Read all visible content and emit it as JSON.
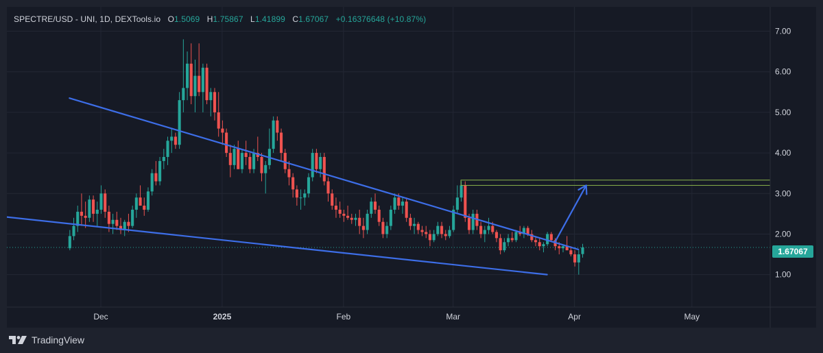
{
  "header": {
    "symbol": "SPECTRE/USD - UNI, 1D, DEXTools.io",
    "open_label": "O",
    "open": "1.5069",
    "high_label": "H",
    "high": "1.75867",
    "low_label": "L",
    "low": "1.41899",
    "close_label": "C",
    "close": "1.67067",
    "change": "+0.16376648 (+10.87%)"
  },
  "footer": {
    "brand": "TradingView"
  },
  "colors": {
    "up": "#26a69a",
    "down": "#ef5350",
    "trendline": "#3d6ee8",
    "level_box": "#8ab34a",
    "grid": "#232734",
    "text": "#d1d4dc"
  },
  "chart_data": {
    "type": "candlestick",
    "title": "SPECTRE/USD - UNI, 1D, DEXTools.io",
    "ylim": [
      0.2,
      7.6
    ],
    "y_ticks": [
      "7.00",
      "6.00",
      "5.00",
      "4.00",
      "3.00",
      "2.00",
      "1.00"
    ],
    "x_ticks": [
      "Dec",
      "2025",
      "Feb",
      "Mar",
      "Apr",
      "May"
    ],
    "x_tick_days": [
      8,
      39,
      70,
      98,
      129,
      159
    ],
    "x_range_days": [
      -16,
      179
    ],
    "last_price": "1.67067",
    "last_price_value": 1.67067,
    "ohlc": [
      [
        1.65,
        2.1,
        1.6,
        1.95
      ],
      [
        1.95,
        2.4,
        1.85,
        2.2
      ],
      [
        2.2,
        2.7,
        2.05,
        2.55
      ],
      [
        2.55,
        3.0,
        2.2,
        2.45
      ],
      [
        2.45,
        2.8,
        2.15,
        2.4
      ],
      [
        2.4,
        2.95,
        2.3,
        2.85
      ],
      [
        2.85,
        2.95,
        2.3,
        2.5
      ],
      [
        2.5,
        2.8,
        2.2,
        2.6
      ],
      [
        2.6,
        3.2,
        2.5,
        3.0
      ],
      [
        3.0,
        3.1,
        2.4,
        2.55
      ],
      [
        2.55,
        2.7,
        2.05,
        2.25
      ],
      [
        2.25,
        2.5,
        2.0,
        2.35
      ],
      [
        2.35,
        2.55,
        2.1,
        2.2
      ],
      [
        2.2,
        2.4,
        2.0,
        2.1
      ],
      [
        2.1,
        2.35,
        1.95,
        2.3
      ],
      [
        2.3,
        2.5,
        2.05,
        2.2
      ],
      [
        2.2,
        2.7,
        2.15,
        2.6
      ],
      [
        2.6,
        3.0,
        2.4,
        2.9
      ],
      [
        2.9,
        3.2,
        2.7,
        2.7
      ],
      [
        2.7,
        2.9,
        2.45,
        2.6
      ],
      [
        2.6,
        3.15,
        2.55,
        3.05
      ],
      [
        3.05,
        3.6,
        2.95,
        3.5
      ],
      [
        3.5,
        3.8,
        3.2,
        3.3
      ],
      [
        3.3,
        3.9,
        3.2,
        3.8
      ],
      [
        3.8,
        4.1,
        3.6,
        3.9
      ],
      [
        3.9,
        4.4,
        3.7,
        4.3
      ],
      [
        4.3,
        4.6,
        4.0,
        4.4
      ],
      [
        4.4,
        4.5,
        4.1,
        4.2
      ],
      [
        4.2,
        5.5,
        4.1,
        5.3
      ],
      [
        5.3,
        6.8,
        5.0,
        5.6
      ],
      [
        5.6,
        6.5,
        5.3,
        6.2
      ],
      [
        6.2,
        6.7,
        5.2,
        5.4
      ],
      [
        5.4,
        6.3,
        5.0,
        5.9
      ],
      [
        5.9,
        6.7,
        5.4,
        5.5
      ],
      [
        5.5,
        6.2,
        5.0,
        6.1
      ],
      [
        6.1,
        6.2,
        5.2,
        5.3
      ],
      [
        5.3,
        5.6,
        4.9,
        5.5
      ],
      [
        5.5,
        5.6,
        4.8,
        5.0
      ],
      [
        5.0,
        5.5,
        4.4,
        4.6
      ],
      [
        4.6,
        4.8,
        4.2,
        4.5
      ],
      [
        4.5,
        4.6,
        3.9,
        4.0
      ],
      [
        4.0,
        4.2,
        3.4,
        3.7
      ],
      [
        3.7,
        4.2,
        3.6,
        4.1
      ],
      [
        4.1,
        4.3,
        3.6,
        3.6
      ],
      [
        3.6,
        4.1,
        3.5,
        4.0
      ],
      [
        4.0,
        4.3,
        3.7,
        3.9
      ],
      [
        3.9,
        4.0,
        3.5,
        3.6
      ],
      [
        3.6,
        4.1,
        3.5,
        4.0
      ],
      [
        4.0,
        4.4,
        3.8,
        3.9
      ],
      [
        3.9,
        4.0,
        3.3,
        3.5
      ],
      [
        3.5,
        3.8,
        3.0,
        3.7
      ],
      [
        3.7,
        4.6,
        3.6,
        4.1
      ],
      [
        4.1,
        4.9,
        4.0,
        4.8
      ],
      [
        4.8,
        4.9,
        4.3,
        4.5
      ],
      [
        4.5,
        4.6,
        3.8,
        4.0
      ],
      [
        4.0,
        4.1,
        3.5,
        3.6
      ],
      [
        3.6,
        3.8,
        3.2,
        3.4
      ],
      [
        3.4,
        3.5,
        2.9,
        3.1
      ],
      [
        3.1,
        3.2,
        2.7,
        2.9
      ],
      [
        2.9,
        3.1,
        2.6,
        2.9
      ],
      [
        2.9,
        3.1,
        2.7,
        3.0
      ],
      [
        3.0,
        3.5,
        2.9,
        3.4
      ],
      [
        3.4,
        4.1,
        3.3,
        4.0
      ],
      [
        4.0,
        4.1,
        3.5,
        3.6
      ],
      [
        3.6,
        4.0,
        3.4,
        3.9
      ],
      [
        3.9,
        4.0,
        3.2,
        3.3
      ],
      [
        3.3,
        3.4,
        2.8,
        3.0
      ],
      [
        3.0,
        3.1,
        2.6,
        2.7
      ],
      [
        2.7,
        2.9,
        2.4,
        2.6
      ],
      [
        2.6,
        2.8,
        2.4,
        2.5
      ],
      [
        2.5,
        2.6,
        2.3,
        2.45
      ],
      [
        2.45,
        2.7,
        2.35,
        2.4
      ],
      [
        2.4,
        2.5,
        2.25,
        2.35
      ],
      [
        2.35,
        2.5,
        2.2,
        2.4
      ],
      [
        2.4,
        2.6,
        2.0,
        2.2
      ],
      [
        2.2,
        2.4,
        1.9,
        2.1
      ],
      [
        2.1,
        2.6,
        2.0,
        2.5
      ],
      [
        2.5,
        2.9,
        2.4,
        2.8
      ],
      [
        2.8,
        3.0,
        2.5,
        2.6
      ],
      [
        2.6,
        2.7,
        2.2,
        2.3
      ],
      [
        2.3,
        2.4,
        1.9,
        2.0
      ],
      [
        2.0,
        2.3,
        1.9,
        2.2
      ],
      [
        2.2,
        2.7,
        2.1,
        2.6
      ],
      [
        2.6,
        3.0,
        2.5,
        2.9
      ],
      [
        2.9,
        3.0,
        2.6,
        2.7
      ],
      [
        2.7,
        2.9,
        2.5,
        2.8
      ],
      [
        2.8,
        2.9,
        2.3,
        2.4
      ],
      [
        2.4,
        2.5,
        2.1,
        2.2
      ],
      [
        2.2,
        2.4,
        2.0,
        2.25
      ],
      [
        2.25,
        2.3,
        2.0,
        2.1
      ],
      [
        2.1,
        2.2,
        1.95,
        2.05
      ],
      [
        2.05,
        2.2,
        1.9,
        2.0
      ],
      [
        2.0,
        2.1,
        1.7,
        1.85
      ],
      [
        1.85,
        2.1,
        1.8,
        2.0
      ],
      [
        2.0,
        2.3,
        1.95,
        2.2
      ],
      [
        2.2,
        2.3,
        1.9,
        2.0
      ],
      [
        2.0,
        2.1,
        1.85,
        1.95
      ],
      [
        1.95,
        2.2,
        1.9,
        2.1
      ],
      [
        2.1,
        2.7,
        2.05,
        2.6
      ],
      [
        2.6,
        3.2,
        2.5,
        2.9
      ],
      [
        2.9,
        3.3,
        2.8,
        3.2
      ],
      [
        3.2,
        3.3,
        2.3,
        2.4
      ],
      [
        2.4,
        2.5,
        2.0,
        2.1
      ],
      [
        2.1,
        2.6,
        2.0,
        2.5
      ],
      [
        2.5,
        2.6,
        2.1,
        2.2
      ],
      [
        2.2,
        2.3,
        1.9,
        2.0
      ],
      [
        2.0,
        2.2,
        1.8,
        2.1
      ],
      [
        2.1,
        2.4,
        2.0,
        2.2
      ],
      [
        2.2,
        2.3,
        2.0,
        2.05
      ],
      [
        2.05,
        2.1,
        1.8,
        1.9
      ],
      [
        1.9,
        2.0,
        1.5,
        1.6
      ],
      [
        1.6,
        1.9,
        1.55,
        1.8
      ],
      [
        1.8,
        2.0,
        1.7,
        1.9
      ],
      [
        1.9,
        2.05,
        1.8,
        1.85
      ],
      [
        1.85,
        2.1,
        1.8,
        2.05
      ],
      [
        2.05,
        2.2,
        1.95,
        2.0
      ],
      [
        2.0,
        2.2,
        1.9,
        2.15
      ],
      [
        2.15,
        2.2,
        1.95,
        2.0
      ],
      [
        2.0,
        2.1,
        1.8,
        1.85
      ],
      [
        1.85,
        1.95,
        1.7,
        1.8
      ],
      [
        1.8,
        1.9,
        1.6,
        1.7
      ],
      [
        1.7,
        1.8,
        1.55,
        1.75
      ],
      [
        1.75,
        2.05,
        1.7,
        2.0
      ],
      [
        2.0,
        2.05,
        1.8,
        1.85
      ],
      [
        1.85,
        1.9,
        1.6,
        1.7
      ],
      [
        1.7,
        1.8,
        1.5,
        1.65
      ],
      [
        1.65,
        1.75,
        1.55,
        1.7
      ],
      [
        1.7,
        1.95,
        1.6,
        1.6
      ],
      [
        1.6,
        1.7,
        1.45,
        1.5
      ],
      [
        1.5,
        1.6,
        1.2,
        1.3
      ],
      [
        1.3,
        1.6,
        1.0,
        1.5
      ],
      [
        1.5069,
        1.75867,
        1.41899,
        1.67067
      ]
    ],
    "annotations": {
      "upper_trendline": {
        "start": [
          0,
          5.35
        ],
        "end": [
          130,
          1.62
        ]
      },
      "lower_trendline": {
        "start": [
          -19,
          2.45
        ],
        "end": [
          122,
          1.0
        ]
      },
      "resistance_box": {
        "x_start": 100,
        "y_low": 3.2,
        "y_high": 3.33
      },
      "breakout_arrow": {
        "from": [
          124,
          1.8
        ],
        "to": [
          132,
          3.2
        ]
      }
    }
  }
}
